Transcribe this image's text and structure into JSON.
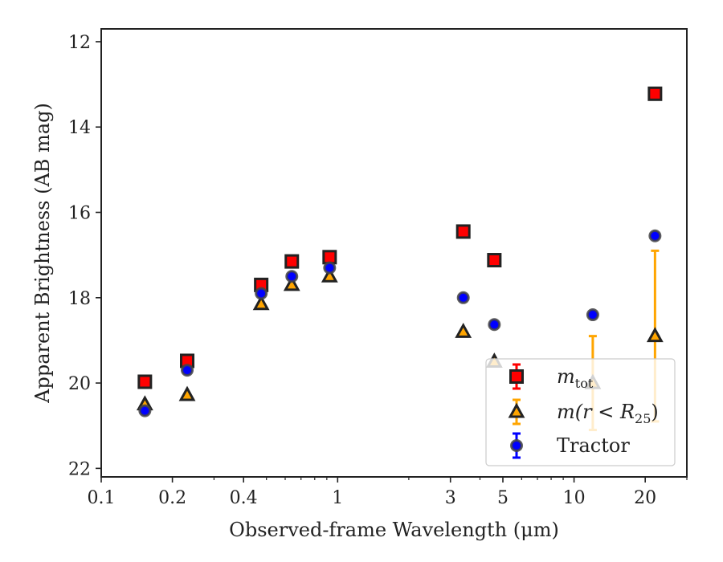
{
  "chart_data": {
    "type": "scatter",
    "xscale": "log",
    "xlabel": "Observed-frame Wavelength (μm)",
    "ylabel": "Apparent Brightness (AB mag)",
    "xlim": [
      0.1,
      30
    ],
    "ylim": [
      22.2,
      11.7
    ],
    "y_inverted": true,
    "xticks": [
      {
        "value": 0.1,
        "label": "0.1"
      },
      {
        "value": 0.2,
        "label": "0.2"
      },
      {
        "value": 0.4,
        "label": "0.4"
      },
      {
        "value": 1,
        "label": "1"
      },
      {
        "value": 3,
        "label": "3"
      },
      {
        "value": 5,
        "label": "5"
      },
      {
        "value": 10,
        "label": "10"
      },
      {
        "value": 20,
        "label": "20"
      }
    ],
    "yticks": [
      {
        "value": 12,
        "label": "12"
      },
      {
        "value": 14,
        "label": "14"
      },
      {
        "value": 16,
        "label": "16"
      },
      {
        "value": 18,
        "label": "18"
      },
      {
        "value": 20,
        "label": "20"
      },
      {
        "value": 22,
        "label": "22"
      }
    ],
    "grid": false,
    "legend_position": "lower-right",
    "series": [
      {
        "name": "m_tot",
        "legend_main": "m",
        "legend_sub": "tot",
        "marker": "square",
        "face_color": "#ff0000",
        "edge_color": "#222222",
        "err_color": "#ff0000",
        "points": [
          {
            "x": 0.153,
            "y": 19.97
          },
          {
            "x": 0.231,
            "y": 19.48
          },
          {
            "x": 0.475,
            "y": 17.7
          },
          {
            "x": 0.64,
            "y": 17.15
          },
          {
            "x": 0.925,
            "y": 17.05
          },
          {
            "x": 3.4,
            "y": 16.45
          },
          {
            "x": 4.6,
            "y": 17.12
          },
          {
            "x": 22,
            "y": 13.22
          }
        ]
      },
      {
        "name": "m(r < R_25)",
        "legend_main": "m(r < R",
        "legend_sub": "25",
        "legend_tail": ")",
        "marker": "triangle",
        "face_color": "#ffa500",
        "edge_color": "#222222",
        "err_color": "#ffa500",
        "points": [
          {
            "x": 0.153,
            "y": 20.5
          },
          {
            "x": 0.231,
            "y": 20.28
          },
          {
            "x": 0.475,
            "y": 18.15
          },
          {
            "x": 0.64,
            "y": 17.7
          },
          {
            "x": 0.925,
            "y": 17.5
          },
          {
            "x": 3.4,
            "y": 18.8
          },
          {
            "x": 4.6,
            "y": 19.5
          },
          {
            "x": 12,
            "y": 20.0,
            "err_low": 1.1,
            "err_high": 1.1
          },
          {
            "x": 22,
            "y": 18.9,
            "err_low": 2.0,
            "err_high": 2.0
          }
        ]
      },
      {
        "name": "Tractor",
        "legend_main": "Tractor",
        "marker": "circle",
        "face_color": "#0000ff",
        "edge_color": "#444444",
        "err_color": "#0000ff",
        "points": [
          {
            "x": 0.153,
            "y": 20.65
          },
          {
            "x": 0.231,
            "y": 19.7
          },
          {
            "x": 0.475,
            "y": 17.9
          },
          {
            "x": 0.64,
            "y": 17.5
          },
          {
            "x": 0.925,
            "y": 17.3
          },
          {
            "x": 3.4,
            "y": 18.0
          },
          {
            "x": 4.6,
            "y": 18.63
          },
          {
            "x": 12,
            "y": 18.4
          },
          {
            "x": 22,
            "y": 16.55
          }
        ]
      }
    ]
  }
}
